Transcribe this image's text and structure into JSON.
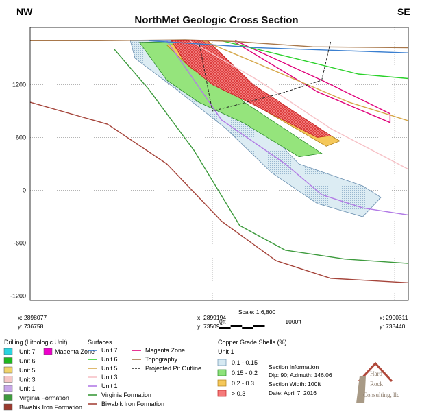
{
  "chart_data": {
    "type": "cross-section",
    "title": "NorthMet Geologic Cross Section",
    "left_direction": "NW",
    "right_direction": "SE",
    "y_ticks": [
      1200,
      600,
      0,
      -600,
      -1200
    ],
    "ylim": [
      -1250,
      1850
    ],
    "xlim": [
      0,
      8300
    ],
    "gridlines": true,
    "coordinate_labels": [
      {
        "x_label": "x: 2898077",
        "y_label": "y: 736758",
        "along_section": 0
      },
      {
        "x_label": "x: 2899194",
        "y_label": "y: 735099",
        "along_section": 4000
      },
      {
        "x_label": "x: 2900311",
        "y_label": "y: 733440",
        "along_section": 8000
      }
    ],
    "scale": {
      "label": "Scale: 1:6,800",
      "start": "0ft",
      "end": "1000ft",
      "length_ft": 1000
    },
    "surfaces": [
      {
        "name": "Biwabik Iron Formation",
        "color": "#a5443a",
        "points": [
          [
            0,
            1000
          ],
          [
            1700,
            750
          ],
          [
            3000,
            300
          ],
          [
            4200,
            -350
          ],
          [
            5400,
            -800
          ],
          [
            6600,
            -1000
          ],
          [
            8300,
            -1050
          ]
        ]
      },
      {
        "name": "Virginia Formation",
        "color": "#3c9a3c",
        "points": [
          [
            1850,
            1600
          ],
          [
            2600,
            1150
          ],
          [
            3600,
            450
          ],
          [
            4600,
            -400
          ],
          [
            5600,
            -680
          ],
          [
            6900,
            -780
          ],
          [
            8300,
            -830
          ]
        ]
      },
      {
        "name": "Unit 1",
        "color": "#b27be6",
        "points": [
          [
            3000,
            1700
          ],
          [
            4200,
            800
          ],
          [
            5600,
            300
          ],
          [
            6400,
            -50
          ],
          [
            7300,
            -200
          ],
          [
            8300,
            -280
          ]
        ]
      },
      {
        "name": "Magenta Zone",
        "color": "#e0007a",
        "points": [
          [
            4500,
            1700
          ],
          [
            6400,
            1250
          ],
          [
            7900,
            870
          ],
          [
            7900,
            770
          ],
          [
            6300,
            1120
          ],
          [
            4500,
            1680
          ]
        ]
      },
      {
        "name": "Unit 3",
        "color": "#f7c1c6",
        "points": [
          [
            3500,
            1700
          ],
          [
            5000,
            1250
          ],
          [
            6600,
            700
          ],
          [
            8300,
            240
          ]
        ]
      },
      {
        "name": "Unit 5",
        "color": "#d6a84a",
        "points": [
          [
            3800,
            1700
          ],
          [
            5400,
            1350
          ],
          [
            7000,
            1000
          ],
          [
            8300,
            790
          ]
        ]
      },
      {
        "name": "Unit 6",
        "color": "#2ad12a",
        "points": [
          [
            4200,
            1700
          ],
          [
            5800,
            1500
          ],
          [
            7200,
            1320
          ],
          [
            8300,
            1270
          ]
        ]
      },
      {
        "name": "Unit 7",
        "color": "#3a7fd0",
        "points": [
          [
            2600,
            1700
          ],
          [
            5000,
            1620
          ],
          [
            8300,
            1560
          ]
        ]
      },
      {
        "name": "Topography",
        "color": "#a8774a",
        "points": [
          [
            0,
            1700
          ],
          [
            1500,
            1700
          ],
          [
            3400,
            1710
          ],
          [
            4500,
            1690
          ],
          [
            6200,
            1630
          ],
          [
            8300,
            1620
          ]
        ]
      }
    ],
    "projected_pit_outline": [
      [
        3700,
        1700
      ],
      [
        4000,
        900
      ],
      [
        5500,
        1100
      ],
      [
        6400,
        1250
      ],
      [
        6600,
        1700
      ]
    ],
    "drilling_units": [
      "Unit 7",
      "Unit 6",
      "Unit 5",
      "Unit 3",
      "Unit 1",
      "Virginia Formation",
      "Biwabik Iron Formation"
    ],
    "copper_grade_shells": [
      "0.1 - 0.15",
      "0.15 - 0.2",
      "0.2 - 0.3",
      "> 0.3"
    ]
  },
  "legend": {
    "drilling": {
      "title": "Drilling (Lithologic Unit)",
      "items": [
        {
          "label": "Unit 7",
          "color": "#2ad4e0"
        },
        {
          "label": "Unit 6",
          "color": "#1fb81f"
        },
        {
          "label": "Unit 5",
          "color": "#f1d46a"
        },
        {
          "label": "Unit 3",
          "color": "#f5c6c6"
        },
        {
          "label": "Unit 1",
          "color": "#c7a6e8"
        },
        {
          "label": "Virginia Formation",
          "color": "#3e9a3e"
        },
        {
          "label": "Biwabik Iron Formation",
          "color": "#9a3a2e"
        }
      ],
      "extra": {
        "label": "Magenta Zone",
        "color": "#ee00cc"
      }
    },
    "surfaces": {
      "title": "Surfaces",
      "items": [
        {
          "label": "Unit 7",
          "color": "#3a7fd0",
          "dash": false
        },
        {
          "label": "Unit 6",
          "color": "#2ad12a",
          "dash": false
        },
        {
          "label": "Unit 5",
          "color": "#d6a84a",
          "dash": false
        },
        {
          "label": "Unit 3",
          "color": "#f7c1c6",
          "dash": false
        },
        {
          "label": "Unit 1",
          "color": "#b27be6",
          "dash": false
        },
        {
          "label": "Virginia Formation",
          "color": "#3c9a3c",
          "dash": false
        },
        {
          "label": "Biwabik Iron Formation",
          "color": "#a5443a",
          "dash": false
        },
        {
          "label": "Magenta Zone",
          "color": "#e0007a",
          "dash": false
        },
        {
          "label": "Topography",
          "color": "#a8774a",
          "dash": false
        },
        {
          "label": "Projected Pit Outline",
          "color": "#222222",
          "dash": true
        }
      ]
    },
    "shells": {
      "title": "Copper Grade Shells (%)",
      "subtitle": "Unit 1",
      "items": [
        {
          "label": "0.1 - 0.15",
          "color": "#d6e9f2",
          "stroke": "#6a8fb0"
        },
        {
          "label": "0.15 - 0.2",
          "color": "#8ee27a",
          "stroke": "#2a8a2a"
        },
        {
          "label": "0.2 - 0.3",
          "color": "#f5c85a",
          "stroke": "#b0801a"
        },
        {
          "label": "> 0.3",
          "color": "#f57a7a",
          "stroke": "#c02020"
        }
      ]
    },
    "section_info": {
      "title": "Section Information",
      "lines": [
        "Dip: 90; Azimuth: 146.06",
        "Section Width: 100ft",
        "Date: April 7, 2016"
      ]
    },
    "logo": {
      "line1": "Hard",
      "line2": "Rock",
      "line3": "Consulting, llc"
    }
  }
}
